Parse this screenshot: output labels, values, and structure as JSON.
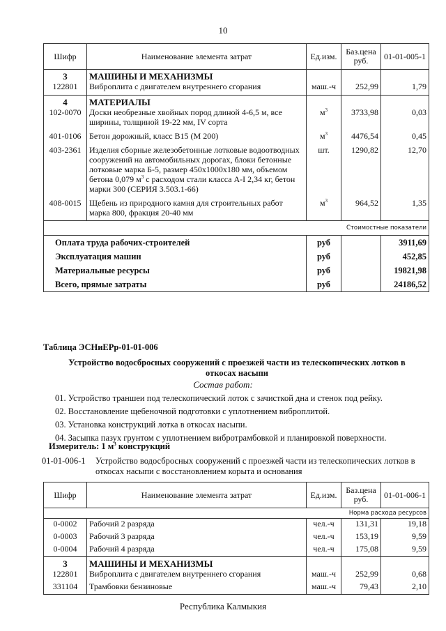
{
  "page_number": "10",
  "header": {
    "code": "Шифр",
    "name": "Наименование элемента затрат",
    "unit": "Ед.изм.",
    "price": "Баз.цена руб."
  },
  "table1": {
    "norm_code": "01-01-005-1",
    "sections": [
      {
        "num": "3",
        "title": "МАШИНЫ И МЕХАНИЗМЫ",
        "rows": [
          {
            "code": "122801",
            "name": "Виброплита с двигателем внутреннего сгорания",
            "unit": "маш.-ч",
            "price": "252,99",
            "value": "1,79"
          }
        ]
      },
      {
        "num": "4",
        "title": "МАТЕРИАЛЫ",
        "rows": [
          {
            "code": "102-0070",
            "name": "Доски необрезные хвойных пород длиной 4-6,5 м, все ширины, толщиной 19-22 мм, IV сорта",
            "unit": "м³",
            "price": "3733,98",
            "value": "0,03"
          },
          {
            "code": "401-0106",
            "name": "Бетон дорожный, класс В15 (М 200)",
            "unit": "м³",
            "price": "4476,54",
            "value": "0,45"
          },
          {
            "code": "403-2361",
            "name": "Изделия сборные железобетонные лотковые водоотводных сооружений на автомобильных дорогах, блоки бетонные лотковые марка Б-5, размер 450x1000x180 мм, объемом бетона 0,079 м³ с расходом стали класса А-I 2,34 кг, бетон марки 300 (СЕРИЯ 3.503.1-66)",
            "unit": "шт.",
            "price": "1290,82",
            "value": "12,70"
          },
          {
            "code": "408-0015",
            "name": "Щебень из природного камня для строительных работ марка 800, фракция 20-40 мм",
            "unit": "м³",
            "price": "964,52",
            "value": "1,35"
          }
        ]
      }
    ],
    "cost_label": "Стоимостные показатели",
    "totals": [
      {
        "name": "Оплата труда рабочих-строителей",
        "unit": "руб",
        "value": "3911,69"
      },
      {
        "name": "Эксплуатация машин",
        "unit": "руб",
        "value": "452,85"
      },
      {
        "name": "Материальные ресурсы",
        "unit": "руб",
        "value": "19821,98"
      },
      {
        "name": "Всего, прямые затраты",
        "unit": "руб",
        "value": "24186,52"
      }
    ]
  },
  "section2": {
    "table_id": "Таблица  ЭСНиЕРр-01-01-006",
    "title": "Устройство водосбросных сооружений с проезжей части из телескопических лотков в откосах насыпи",
    "works_label": "Состав работ:",
    "works": [
      "01. Устройство  траншеи под телескопический лоток с зачисткой дна и стенок под рейку.",
      "02. Восстановление щебеночной подготовки с уплотнением виброплитой.",
      "03. Установка конструкций лотка в откосах насыпи.",
      "04. Засыпка пазух грунтом с уплотнением вибротрамбовкой и планировкой поверхности."
    ],
    "measure": "Измеритель: 1 м³ конструкций",
    "item_code": "01-01-006-1",
    "item_name": "Устройство водосбросных сооружений с проезжей части из телескопических лотков в откосах насыпи с восстановлением корыта и основания"
  },
  "table2": {
    "norm_code": "01-01-006-1",
    "norm_label": "Норма расхода ресурсов",
    "workers": [
      {
        "code": "0-0002",
        "name": "Рабочий 2 разряда",
        "unit": "чел.-ч",
        "price": "131,31",
        "value": "19,18"
      },
      {
        "code": "0-0003",
        "name": "Рабочий 3 разряда",
        "unit": "чел.-ч",
        "price": "153,19",
        "value": "9,59"
      },
      {
        "code": "0-0004",
        "name": "Рабочий 4 разряда",
        "unit": "чел.-ч",
        "price": "175,08",
        "value": "9,59"
      }
    ],
    "section": {
      "num": "3",
      "title": "МАШИНЫ И МЕХАНИЗМЫ",
      "rows": [
        {
          "code": "122801",
          "name": "Виброплита с двигателем внутреннего сгорания",
          "unit": "маш.-ч",
          "price": "252,99",
          "value": "0,68"
        },
        {
          "code": "331104",
          "name": "Трамбовки бензиновые",
          "unit": "маш.-ч",
          "price": "79,43",
          "value": "2,10"
        }
      ]
    }
  },
  "footer": "Республика Калмыкия"
}
